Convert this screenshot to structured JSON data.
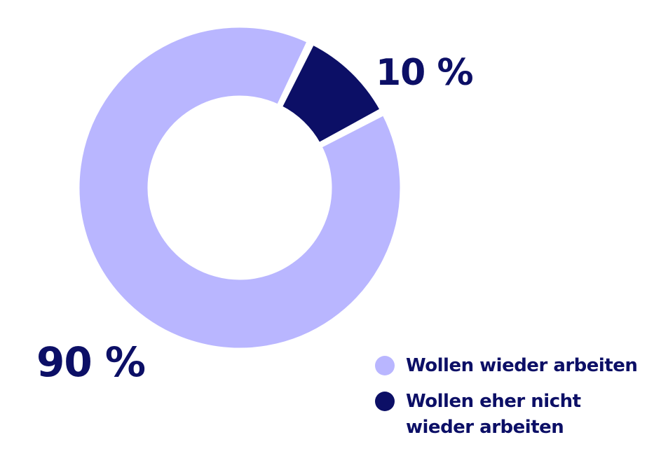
{
  "chart_data": {
    "type": "pie",
    "variant": "donut",
    "categories": [
      "Wollen wieder arbeiten",
      "Wollen eher nicht wieder arbeiten"
    ],
    "values": [
      90,
      10
    ],
    "value_labels": [
      "90 %",
      "10 %"
    ],
    "colors": [
      "#b9b6ff",
      "#0c0f66"
    ],
    "legend": {
      "position": "bottom-right",
      "items": [
        {
          "label_lines": [
            "Wollen wieder arbeiten"
          ],
          "color": "#b9b6ff"
        },
        {
          "label_lines": [
            "Wollen eher nicht",
            "wieder arbeiten"
          ],
          "color": "#0c0f66"
        }
      ]
    },
    "title": ""
  }
}
